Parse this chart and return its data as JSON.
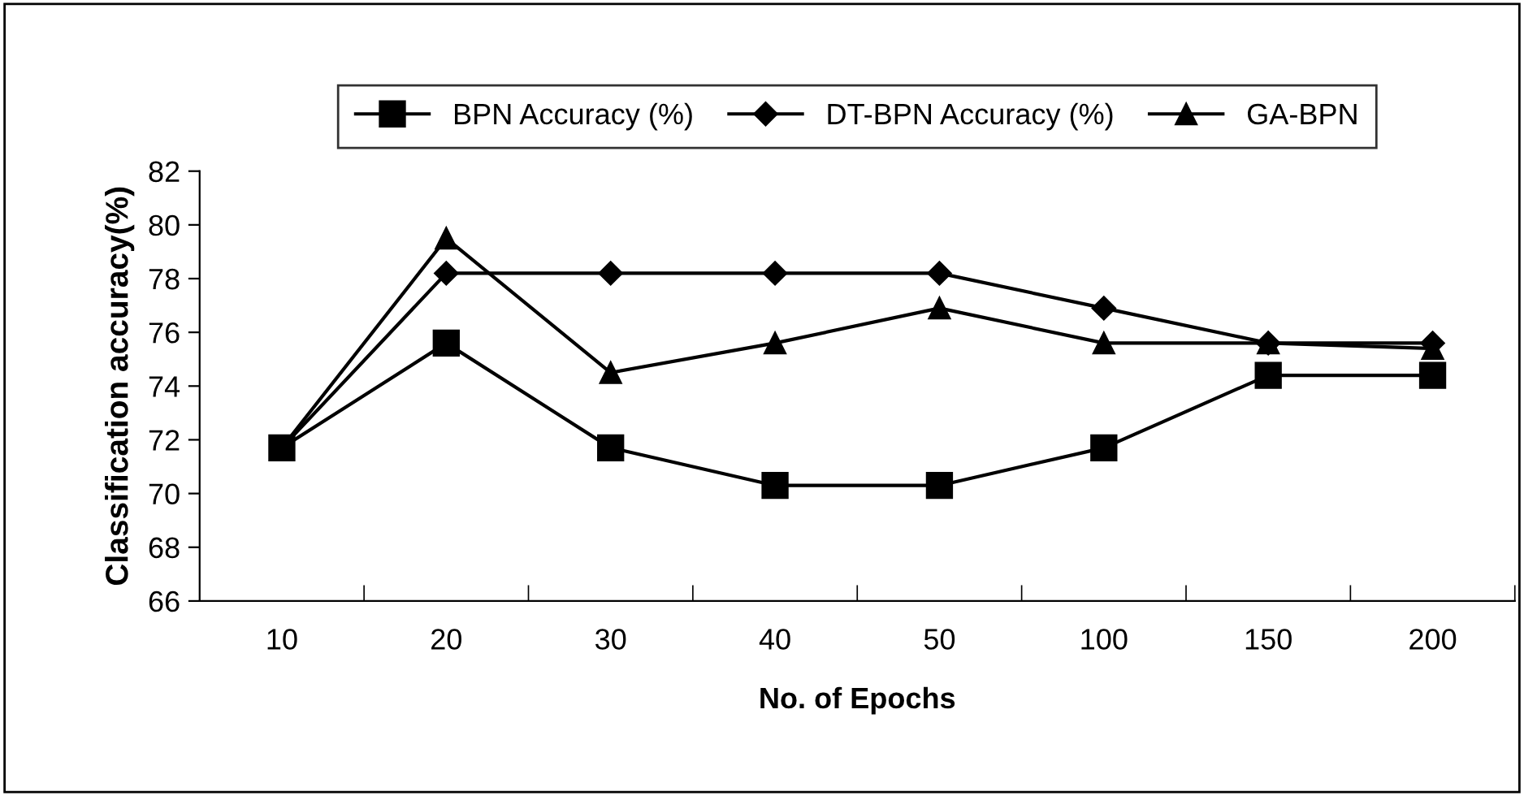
{
  "chart_data": {
    "type": "line",
    "xlabel": "No. of Epochs",
    "ylabel": "Classification accuracy(%)",
    "categories": [
      "10",
      "20",
      "30",
      "40",
      "50",
      "100",
      "150",
      "200"
    ],
    "series": [
      {
        "name": "BPN Accuracy (%)",
        "color": "#000000",
        "marker": "square",
        "values": [
          71.7,
          75.6,
          71.7,
          70.3,
          70.3,
          71.7,
          74.4,
          74.4
        ]
      },
      {
        "name": "DT-BPN Accuracy (%)",
        "color": "#000000",
        "marker": "diamond",
        "values": [
          71.7,
          78.2,
          78.2,
          78.2,
          78.2,
          76.9,
          75.6,
          75.6
        ]
      },
      {
        "name": "GA-BPN",
        "color": "#000000",
        "marker": "triangle",
        "values": [
          71.7,
          79.5,
          74.5,
          75.6,
          76.9,
          75.6,
          75.6,
          75.4
        ]
      }
    ],
    "ylim": [
      66,
      82
    ],
    "yticks": [
      66,
      68,
      70,
      72,
      74,
      76,
      78,
      80,
      82
    ],
    "grid": false,
    "legend": "top",
    "line_style": "solid"
  }
}
